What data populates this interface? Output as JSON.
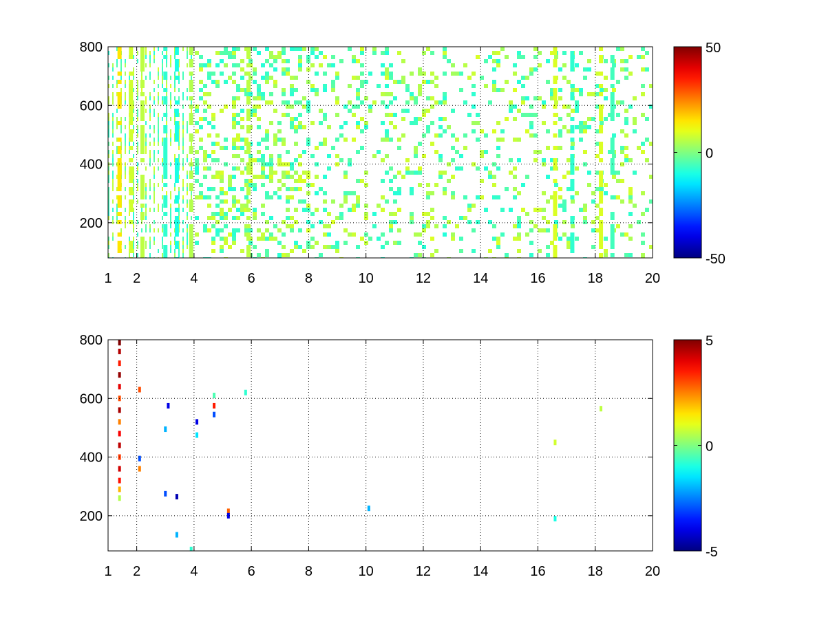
{
  "chart_data": [
    {
      "type": "heatmap",
      "title": "",
      "xlabel": "",
      "ylabel": "",
      "xlim": [
        1,
        20
      ],
      "ylim": [
        80,
        800
      ],
      "x_ticks": [
        1,
        2,
        4,
        6,
        8,
        10,
        12,
        14,
        16,
        18,
        20
      ],
      "y_ticks": [
        200,
        400,
        600,
        800
      ],
      "grid": true,
      "colormap": "jet",
      "colorbar": {
        "min": -50,
        "max": 50,
        "ticks": [
          -50,
          0,
          50
        ],
        "placement": "right"
      },
      "colors_that_matter": {
        "background": "#ffffff",
        "dominant_positive": "#d2f53c",
        "dominant_negative": "#3cf5c3"
      },
      "vertical_bands": [
        {
          "x": 1.4,
          "value": 15
        },
        {
          "x": 1.8,
          "value": 8
        },
        {
          "x": 2.2,
          "value": 6
        },
        {
          "x": 3.0,
          "value": -8
        },
        {
          "x": 3.4,
          "value": -10
        },
        {
          "x": 3.9,
          "value": 5
        },
        {
          "x": 5.9,
          "value": 6
        },
        {
          "x": 16.6,
          "value": 9
        },
        {
          "x": 17.2,
          "value": -8
        },
        {
          "x": 18.2,
          "value": 9
        },
        {
          "x": 18.6,
          "value": -6
        }
      ]
    },
    {
      "type": "heatmap",
      "title": "",
      "xlabel": "",
      "ylabel": "",
      "xlim": [
        1,
        20
      ],
      "ylim": [
        80,
        800
      ],
      "x_ticks": [
        1,
        2,
        4,
        6,
        8,
        10,
        12,
        14,
        16,
        18,
        20
      ],
      "y_ticks": [
        200,
        400,
        600,
        800
      ],
      "grid": true,
      "colormap": "jet",
      "colorbar": {
        "min": -5,
        "max": 5,
        "ticks": [
          -5,
          0,
          5
        ],
        "placement": "right"
      },
      "points": [
        {
          "x": 1.4,
          "y": 790,
          "value": 5
        },
        {
          "x": 1.4,
          "y": 760,
          "value": 4.5
        },
        {
          "x": 1.4,
          "y": 720,
          "value": 3.5
        },
        {
          "x": 1.4,
          "y": 680,
          "value": 4.8
        },
        {
          "x": 1.4,
          "y": 640,
          "value": 4
        },
        {
          "x": 1.4,
          "y": 600,
          "value": 3
        },
        {
          "x": 1.4,
          "y": 560,
          "value": 4.6
        },
        {
          "x": 1.4,
          "y": 520,
          "value": 2.5
        },
        {
          "x": 1.4,
          "y": 480,
          "value": 3.8
        },
        {
          "x": 1.4,
          "y": 440,
          "value": 4.4
        },
        {
          "x": 1.4,
          "y": 400,
          "value": 3.2
        },
        {
          "x": 1.4,
          "y": 360,
          "value": 4.2
        },
        {
          "x": 1.4,
          "y": 320,
          "value": 3.6
        },
        {
          "x": 1.4,
          "y": 290,
          "value": 2
        },
        {
          "x": 1.4,
          "y": 260,
          "value": 0.5
        },
        {
          "x": 2.1,
          "y": 630,
          "value": 3
        },
        {
          "x": 2.1,
          "y": 395,
          "value": -3
        },
        {
          "x": 2.1,
          "y": 360,
          "value": 2.5
        },
        {
          "x": 3.1,
          "y": 575,
          "value": -4
        },
        {
          "x": 3.0,
          "y": 495,
          "value": -2
        },
        {
          "x": 3.0,
          "y": 275,
          "value": -3
        },
        {
          "x": 3.4,
          "y": 265,
          "value": -4.5
        },
        {
          "x": 3.4,
          "y": 135,
          "value": -2
        },
        {
          "x": 3.9,
          "y": 85,
          "value": -0.8
        },
        {
          "x": 4.1,
          "y": 520,
          "value": -4
        },
        {
          "x": 4.1,
          "y": 475,
          "value": -1.5
        },
        {
          "x": 4.7,
          "y": 610,
          "value": -0.5
        },
        {
          "x": 4.7,
          "y": 575,
          "value": 3.5
        },
        {
          "x": 4.7,
          "y": 545,
          "value": -3
        },
        {
          "x": 5.2,
          "y": 215,
          "value": 2.8
        },
        {
          "x": 5.2,
          "y": 200,
          "value": -4
        },
        {
          "x": 5.8,
          "y": 620,
          "value": -0.8
        },
        {
          "x": 10.1,
          "y": 225,
          "value": -2
        },
        {
          "x": 16.6,
          "y": 450,
          "value": 0.8
        },
        {
          "x": 16.6,
          "y": 190,
          "value": -1
        },
        {
          "x": 18.2,
          "y": 565,
          "value": 0.6
        }
      ]
    }
  ]
}
